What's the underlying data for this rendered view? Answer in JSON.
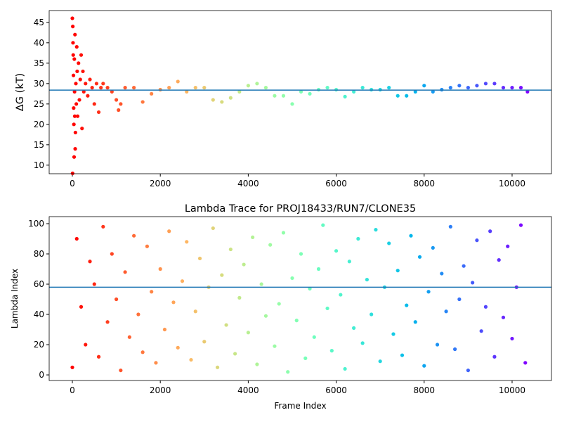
{
  "chart_data": [
    {
      "type": "scatter",
      "ylabel": "ΔG (kT)",
      "x": [
        0,
        5,
        10,
        15,
        20,
        25,
        30,
        35,
        40,
        45,
        50,
        55,
        60,
        65,
        70,
        80,
        90,
        100,
        110,
        120,
        140,
        160,
        180,
        200,
        220,
        240,
        260,
        300,
        350,
        400,
        450,
        500,
        550,
        600,
        650,
        700,
        800,
        900,
        1000,
        1050,
        1100,
        1200,
        1400,
        1600,
        1800,
        2000,
        2200,
        2400,
        2600,
        2800,
        3000,
        3200,
        3400,
        3600,
        3800,
        4000,
        4200,
        4400,
        4600,
        4800,
        5000,
        5200,
        5400,
        5600,
        5800,
        6000,
        6200,
        6400,
        6600,
        6800,
        7000,
        7200,
        7400,
        7600,
        7800,
        8000,
        8200,
        8400,
        8600,
        8800,
        9000,
        9200,
        9400,
        9600,
        9800,
        10000,
        10200,
        10350
      ],
      "values": [
        46,
        8,
        44,
        40,
        37,
        32,
        24,
        20,
        12,
        36,
        28,
        22,
        42,
        14,
        18,
        30,
        25,
        39,
        33,
        22,
        35,
        26,
        31,
        37,
        19,
        33,
        28,
        30,
        27,
        31,
        29,
        25,
        30,
        23,
        29,
        30,
        29,
        28,
        26,
        23.5,
        25,
        29,
        29,
        25.5,
        27.5,
        28.5,
        29,
        30.5,
        28,
        29,
        29,
        26,
        25.5,
        26.5,
        28,
        29.5,
        30,
        29,
        27,
        27,
        25,
        28,
        27.5,
        28.5,
        29,
        28.5,
        26.8,
        28,
        29,
        28.5,
        28.5,
        29,
        27,
        27,
        28,
        29.5,
        28,
        28.5,
        29,
        29.5,
        29,
        29.5,
        30,
        30,
        29,
        29,
        29,
        28
      ],
      "colormap": "rainbow_r",
      "hline": 28.4,
      "hline_color": "#1f77b4",
      "xlim": [
        -527,
        10895
      ],
      "ylim": [
        7.9,
        47.9
      ],
      "xticks": [
        0,
        2000,
        4000,
        6000,
        8000,
        10000
      ],
      "yticks": [
        10,
        15,
        20,
        25,
        30,
        35,
        40,
        45
      ]
    },
    {
      "type": "scatter",
      "title": "Lambda Trace for PROJ18433/RUN7/CLONE35",
      "xlabel": "Frame Index",
      "ylabel": "Lambda Index",
      "x": [
        0,
        100,
        200,
        300,
        400,
        500,
        600,
        700,
        800,
        900,
        1000,
        1100,
        1200,
        1300,
        1400,
        1500,
        1600,
        1700,
        1800,
        1900,
        2000,
        2100,
        2200,
        2300,
        2400,
        2500,
        2600,
        2700,
        2800,
        2900,
        3000,
        3100,
        3200,
        3300,
        3400,
        3500,
        3600,
        3700,
        3800,
        3900,
        4000,
        4100,
        4200,
        4300,
        4400,
        4500,
        4600,
        4700,
        4800,
        4900,
        5000,
        5100,
        5200,
        5300,
        5400,
        5500,
        5600,
        5700,
        5800,
        5900,
        6000,
        6100,
        6200,
        6300,
        6400,
        6500,
        6600,
        6700,
        6800,
        6900,
        7000,
        7100,
        7200,
        7300,
        7400,
        7500,
        7600,
        7700,
        7800,
        7900,
        8000,
        8100,
        8200,
        8300,
        8400,
        8500,
        8600,
        8700,
        8800,
        8900,
        9000,
        9100,
        9200,
        9300,
        9400,
        9500,
        9600,
        9700,
        9800,
        9900,
        10000,
        10100,
        10200,
        10300
      ],
      "values": [
        5,
        90,
        45,
        20,
        75,
        60,
        12,
        98,
        35,
        80,
        50,
        3,
        68,
        25,
        92,
        40,
        15,
        85,
        55,
        8,
        70,
        30,
        95,
        48,
        18,
        62,
        88,
        10,
        42,
        77,
        22,
        58,
        97,
        5,
        66,
        33,
        83,
        14,
        51,
        73,
        28,
        91,
        7,
        60,
        39,
        86,
        19,
        47,
        94,
        2,
        64,
        36,
        80,
        11,
        57,
        25,
        70,
        99,
        44,
        16,
        82,
        53,
        4,
        75,
        31,
        90,
        21,
        63,
        40,
        96,
        9,
        58,
        87,
        27,
        69,
        13,
        46,
        92,
        35,
        78,
        6,
        55,
        84,
        20,
        67,
        42,
        98,
        17,
        50,
        72,
        3,
        61,
        89,
        29,
        45,
        95,
        12,
        76,
        38,
        85,
        24,
        58,
        99,
        8
      ],
      "colormap": "rainbow_r",
      "hline": 58,
      "hline_color": "#1f77b4",
      "xlim": [
        -527,
        10895
      ],
      "ylim": [
        -3.7,
        104.65
      ],
      "xticks": [
        0,
        2000,
        4000,
        6000,
        8000,
        10000
      ],
      "yticks": [
        0,
        20,
        40,
        60,
        80,
        100
      ]
    }
  ]
}
